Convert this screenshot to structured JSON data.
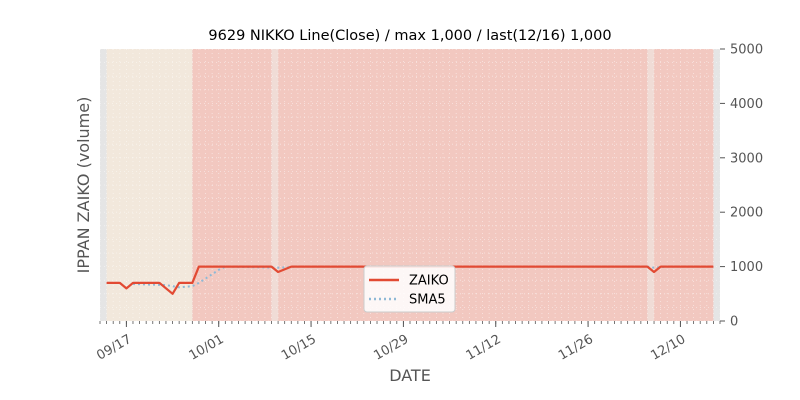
{
  "chart_data": {
    "type": "line",
    "title": "9629 NIKKO Line(Close) / max 1,000 / last(12/16) 1,000",
    "xlabel": "DATE",
    "ylabel": "IPPAN ZAIKO (volume)",
    "ylim": [
      0,
      5000
    ],
    "yticks": [
      "0",
      "1000",
      "2000",
      "3000",
      "4000",
      "5000"
    ],
    "yaxis_side": "right",
    "xlim": [
      "2024-09-13",
      "2024-12-16"
    ],
    "xticks": [
      {
        "date": "2024-09-17",
        "label": "09/17"
      },
      {
        "date": "2024-10-01",
        "label": "10/01"
      },
      {
        "date": "2024-10-15",
        "label": "10/15"
      },
      {
        "date": "2024-10-29",
        "label": "10/29"
      },
      {
        "date": "2024-11-12",
        "label": "11/12"
      },
      {
        "date": "2024-11-26",
        "label": "11/26"
      },
      {
        "date": "2024-12-10",
        "label": "12/10"
      }
    ],
    "legend_position": "bottom-center",
    "grid": true,
    "colors": {
      "zaiko": "#e24a33",
      "sma5": "#8eb9d6",
      "band_light": "#f2e8dc",
      "band_red": "#f2c8c0",
      "band_gap": "#f0dcd6",
      "band_edge": "#e5e5e5"
    },
    "bands": [
      {
        "from": "2024-09-14",
        "to": "2024-09-27",
        "color": "band_light"
      },
      {
        "from": "2024-09-27",
        "to": "2024-10-09",
        "color": "band_red"
      },
      {
        "from": "2024-10-10",
        "to": "2024-12-05",
        "color": "band_red"
      },
      {
        "from": "2024-12-06",
        "to": "2024-12-15",
        "color": "band_red"
      }
    ],
    "series": [
      {
        "name": "ZAIKO",
        "style": "solid",
        "color": "zaiko",
        "points": [
          {
            "x": "2024-09-14",
            "y": 700
          },
          {
            "x": "2024-09-16",
            "y": 700
          },
          {
            "x": "2024-09-17",
            "y": 600
          },
          {
            "x": "2024-09-18",
            "y": 700
          },
          {
            "x": "2024-09-22",
            "y": 700
          },
          {
            "x": "2024-09-24",
            "y": 500
          },
          {
            "x": "2024-09-25",
            "y": 700
          },
          {
            "x": "2024-09-27",
            "y": 700
          },
          {
            "x": "2024-09-28",
            "y": 1000
          },
          {
            "x": "2024-10-09",
            "y": 1000
          },
          {
            "x": "2024-10-10",
            "y": 900
          },
          {
            "x": "2024-10-12",
            "y": 1000
          },
          {
            "x": "2024-12-05",
            "y": 1000
          },
          {
            "x": "2024-12-06",
            "y": 900
          },
          {
            "x": "2024-12-07",
            "y": 1000
          },
          {
            "x": "2024-12-15",
            "y": 1000
          }
        ]
      },
      {
        "name": "SMA5",
        "style": "dotted",
        "color": "sma5",
        "points": [
          {
            "x": "2024-09-18",
            "y": 680
          },
          {
            "x": "2024-09-23",
            "y": 660
          },
          {
            "x": "2024-09-25",
            "y": 620
          },
          {
            "x": "2024-09-27",
            "y": 640
          },
          {
            "x": "2024-09-28",
            "y": 700
          },
          {
            "x": "2024-10-01",
            "y": 940
          },
          {
            "x": "2024-10-02",
            "y": 1000
          },
          {
            "x": "2024-10-10",
            "y": 980
          },
          {
            "x": "2024-10-13",
            "y": 1000
          },
          {
            "x": "2024-12-05",
            "y": 1000
          },
          {
            "x": "2024-12-06",
            "y": 980
          },
          {
            "x": "2024-12-08",
            "y": 1000
          },
          {
            "x": "2024-12-15",
            "y": 1000
          }
        ]
      }
    ]
  }
}
